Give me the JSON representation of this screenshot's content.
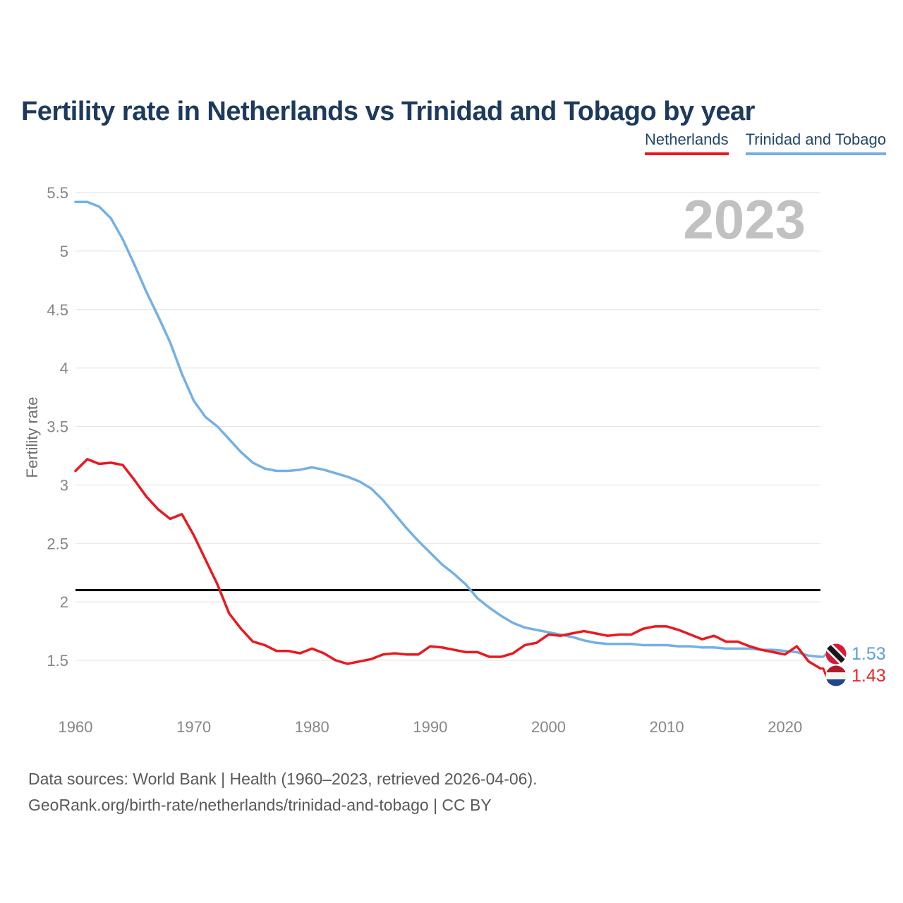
{
  "header": {
    "title": "Fertility rate in Netherlands vs Trinidad and Tobago by year"
  },
  "watermark": "2023",
  "footer": {
    "line1": "Data sources: World Bank | Health (1960–2023, retrieved 2026-04-06).",
    "line2": "GeoRank.org/birth-rate/netherlands/trinidad-and-tobago | CC BY"
  },
  "chart_data": {
    "type": "line",
    "title": "Fertility rate in Netherlands vs Trinidad and Tobago by year",
    "xlabel": "",
    "ylabel": "Fertility rate",
    "xlim": [
      1960,
      2023
    ],
    "ylim": [
      1.5,
      5.5
    ],
    "grid": "horizontal",
    "legend_position": "top-right",
    "x_ticks": [
      1960,
      1970,
      1980,
      1990,
      2000,
      2010,
      2020
    ],
    "y_ticks": [
      1.5,
      2,
      2.5,
      3,
      3.5,
      4,
      4.5,
      5,
      5.5
    ],
    "reference_line": {
      "value": 2.1,
      "color": "#000000"
    },
    "x": [
      1960,
      1961,
      1962,
      1963,
      1964,
      1965,
      1966,
      1967,
      1968,
      1969,
      1970,
      1971,
      1972,
      1973,
      1974,
      1975,
      1976,
      1977,
      1978,
      1979,
      1980,
      1981,
      1982,
      1983,
      1984,
      1985,
      1986,
      1987,
      1988,
      1989,
      1990,
      1991,
      1992,
      1993,
      1994,
      1995,
      1996,
      1997,
      1998,
      1999,
      2000,
      2001,
      2002,
      2003,
      2004,
      2005,
      2006,
      2007,
      2008,
      2009,
      2010,
      2011,
      2012,
      2013,
      2014,
      2015,
      2016,
      2017,
      2018,
      2019,
      2020,
      2021,
      2022,
      2023
    ],
    "series": [
      {
        "name": "Netherlands",
        "color": "#e8191f",
        "label_color": "#e8282d",
        "end_label": "1.43",
        "flag": "netherlands",
        "values": [
          3.12,
          3.22,
          3.18,
          3.19,
          3.17,
          3.04,
          2.9,
          2.79,
          2.71,
          2.75,
          2.57,
          2.36,
          2.15,
          1.9,
          1.77,
          1.66,
          1.63,
          1.58,
          1.58,
          1.56,
          1.6,
          1.56,
          1.5,
          1.47,
          1.49,
          1.51,
          1.55,
          1.56,
          1.55,
          1.55,
          1.62,
          1.61,
          1.59,
          1.57,
          1.57,
          1.53,
          1.53,
          1.56,
          1.63,
          1.65,
          1.72,
          1.71,
          1.73,
          1.75,
          1.73,
          1.71,
          1.72,
          1.72,
          1.77,
          1.79,
          1.79,
          1.76,
          1.72,
          1.68,
          1.71,
          1.66,
          1.66,
          1.62,
          1.59,
          1.57,
          1.55,
          1.62,
          1.49,
          1.43
        ]
      },
      {
        "name": "Trinidad and Tobago",
        "color": "#74b0e4",
        "label_color": "#5b9fdc",
        "end_label": "1.53",
        "flag": "trinidad-and-tobago",
        "values": [
          5.42,
          5.42,
          5.38,
          5.28,
          5.1,
          4.88,
          4.65,
          4.44,
          4.22,
          3.95,
          3.72,
          3.58,
          3.5,
          3.39,
          3.28,
          3.19,
          3.14,
          3.12,
          3.12,
          3.13,
          3.15,
          3.13,
          3.1,
          3.07,
          3.03,
          2.97,
          2.87,
          2.75,
          2.63,
          2.52,
          2.42,
          2.32,
          2.24,
          2.15,
          2.03,
          1.95,
          1.88,
          1.82,
          1.78,
          1.76,
          1.74,
          1.72,
          1.7,
          1.67,
          1.65,
          1.64,
          1.64,
          1.64,
          1.63,
          1.63,
          1.63,
          1.62,
          1.62,
          1.61,
          1.61,
          1.6,
          1.6,
          1.6,
          1.59,
          1.59,
          1.58,
          1.57,
          1.54,
          1.53
        ]
      }
    ]
  }
}
